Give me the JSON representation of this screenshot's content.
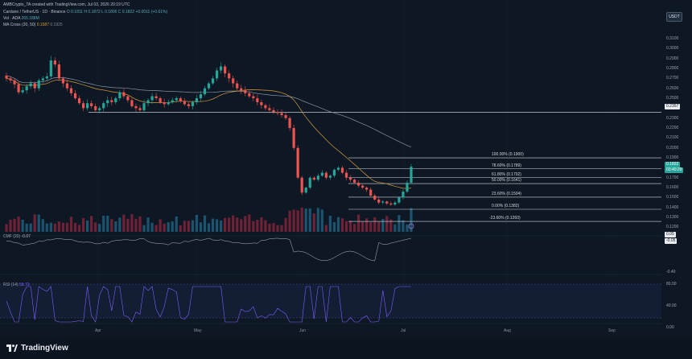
{
  "header": {
    "created_by": "AMBCrypto_TA created with TradingView.com, Jul 03, 2026 20:19 UTC",
    "symbol": "Cardano / TetherUS · 1D · Binance",
    "ohlc": "O 0.1811 H 0.1872 L 0.1806 C 0.1822 +0.0011 (+0.61%)",
    "vol_label": "Vol · ADA",
    "vol_value": "265.188M",
    "ma_cross_label": "MA Cross (20, 50)",
    "ma_cross_values": [
      "0.1587",
      "0.1925"
    ],
    "cmf_label": "CMF (20)",
    "cmf_value": "-0.07",
    "rsi_label": "RSI (14)",
    "rsi_value": "58.73"
  },
  "currency_button": "USDT",
  "price_axis": [
    "0.3100",
    "0.3000",
    "0.2900",
    "0.2800",
    "0.2700",
    "0.2600",
    "0.2500",
    "0.2400",
    "0.2300",
    "0.2200",
    "0.2100",
    "0.2000",
    "0.1900",
    "0.1800",
    "0.1700",
    "0.1600",
    "0.1500",
    "0.1400",
    "0.1300",
    "0.1200"
  ],
  "support_tag": "0.2357",
  "current_price_tag": "0.1822",
  "countdown_tag": "03:40:29",
  "cmf_axis_tags": [
    "0.05",
    "-0.05",
    "-0.40"
  ],
  "rsi_axis": [
    "80.00",
    "40.00",
    "0.00"
  ],
  "fib_levels": [
    {
      "label": "100.00% (0.1900)",
      "price": 0.19
    },
    {
      "label": "78.60% (0.1789)",
      "price": 0.1789
    },
    {
      "label": "61.80% (0.1702)",
      "price": 0.1702
    },
    {
      "label": "50.00% (0.1641)",
      "price": 0.1641
    },
    {
      "label": "23.60% (0.1504)",
      "price": 0.1504
    },
    {
      "label": "0.00% (0.1382)",
      "price": 0.1382
    },
    {
      "label": "-23.60% (0.1260)",
      "price": 0.126
    }
  ],
  "support_level": 0.2357,
  "months": [
    "Apr",
    "May",
    "Jun",
    "Jul",
    "Aug",
    "Sep"
  ],
  "brand": "TradingView",
  "colors": {
    "up": "#26a69a",
    "down": "#ef5350",
    "ma_fast": "#d89a3a",
    "ma_slow": "#8a94a6",
    "rsi": "#7b61ff",
    "fib": "#d4d8de",
    "cmf": "#b8bec8"
  },
  "chart_data": {
    "type": "candlestick",
    "interval": "1D",
    "close_approx": [
      0.27,
      0.268,
      0.264,
      0.256,
      0.258,
      0.262,
      0.265,
      0.26,
      0.268,
      0.27,
      0.272,
      0.288,
      0.284,
      0.27,
      0.265,
      0.26,
      0.255,
      0.25,
      0.245,
      0.24,
      0.245,
      0.242,
      0.238,
      0.24,
      0.245,
      0.248,
      0.246,
      0.25,
      0.256,
      0.252,
      0.248,
      0.242,
      0.24,
      0.238,
      0.245,
      0.248,
      0.252,
      0.25,
      0.246,
      0.244,
      0.246,
      0.248,
      0.25,
      0.247,
      0.244,
      0.242,
      0.246,
      0.25,
      0.254,
      0.26,
      0.265,
      0.27,
      0.278,
      0.282,
      0.275,
      0.27,
      0.265,
      0.26,
      0.258,
      0.255,
      0.252,
      0.25,
      0.246,
      0.243,
      0.24,
      0.238,
      0.236,
      0.235,
      0.233,
      0.23,
      0.22,
      0.2,
      0.17,
      0.155,
      0.16,
      0.17,
      0.168,
      0.172,
      0.175,
      0.17,
      0.172,
      0.178,
      0.18,
      0.175,
      0.17,
      0.168,
      0.165,
      0.162,
      0.16,
      0.158,
      0.152,
      0.148,
      0.145,
      0.146,
      0.144,
      0.143,
      0.145,
      0.15,
      0.156,
      0.165,
      0.1811
    ],
    "ma_fast_label": "MA 20",
    "ma_slow_label": "MA 50"
  }
}
